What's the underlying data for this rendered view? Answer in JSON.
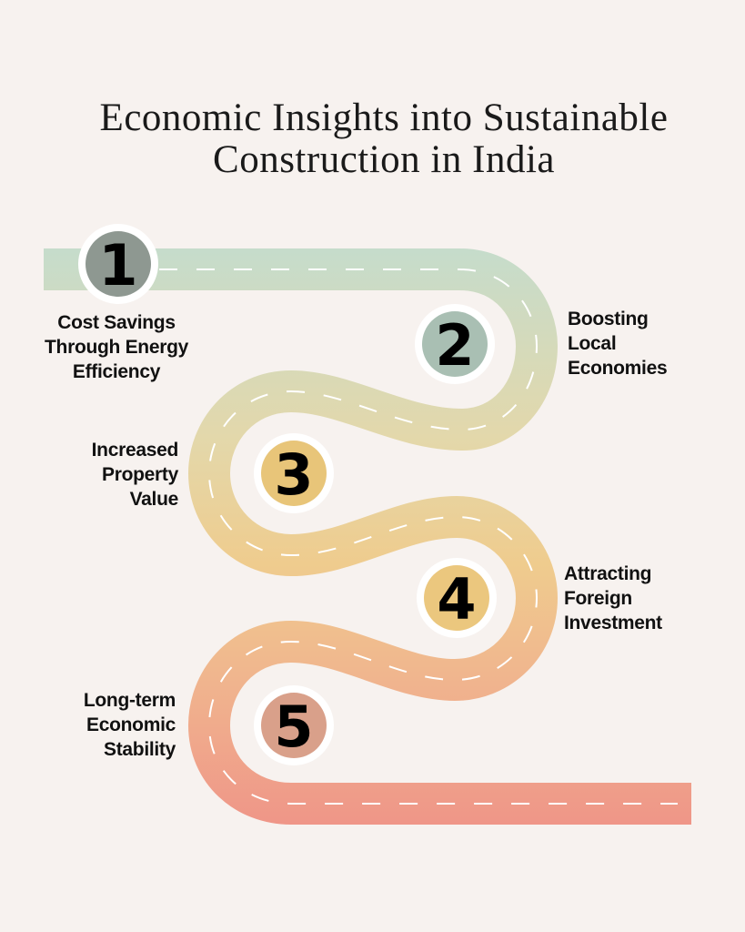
{
  "title": {
    "line1": "Economic Insights into Sustainable",
    "line2": "Construction in India"
  },
  "colors": {
    "background": "#f7f2ef",
    "road_top": "#c5dccc",
    "road_bottom": "#ef9688",
    "dash": "#ffffff"
  },
  "steps": [
    {
      "number": "1",
      "label": [
        "Cost Savings",
        "Through Energy",
        "Efficiency"
      ],
      "color": "#8e9891"
    },
    {
      "number": "2",
      "label": [
        "Boosting",
        "Local",
        "Economies"
      ],
      "color": "#a9bfb3"
    },
    {
      "number": "3",
      "label": [
        "Increased",
        "Property",
        "Value"
      ],
      "color": "#e8c579"
    },
    {
      "number": "4",
      "label": [
        "Attracting",
        "Foreign",
        "Investment"
      ],
      "color": "#ebc77e"
    },
    {
      "number": "5",
      "label": [
        "Long-term",
        "Economic",
        "Stability"
      ],
      "color": "#d9a08a"
    }
  ]
}
